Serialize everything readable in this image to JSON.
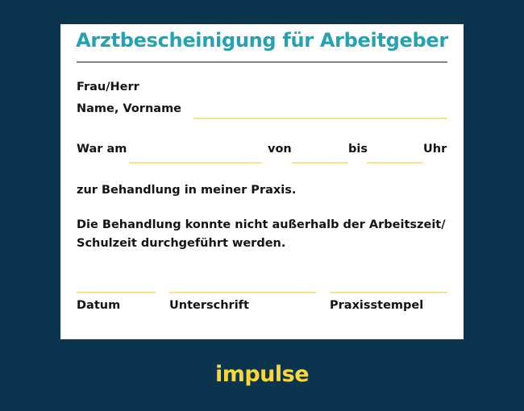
{
  "document": {
    "title": "Arztbescheinigung für Arbeitgeber",
    "salutation": "Frau/Herr",
    "name_label": "Name, Vorname",
    "date_label": "War am",
    "from_label": "von",
    "to_label": "bis",
    "time_label": "Uhr",
    "treatment_text": "zur Behandlung in meiner Praxis.",
    "statement_line1": "Die Behandlung konnte nicht außerhalb der Arbeitszeit/",
    "statement_line2": "Schulzeit durchgeführt werden.",
    "signature_fields": [
      "Datum",
      "Unterschrift",
      "Praxisstempel"
    ]
  },
  "brand": {
    "logo_text": "impulse"
  },
  "colors": {
    "background": "#0b354f",
    "title": "#23a2b3",
    "field_line": "#f8e48e",
    "logo": "#fcd73a"
  }
}
